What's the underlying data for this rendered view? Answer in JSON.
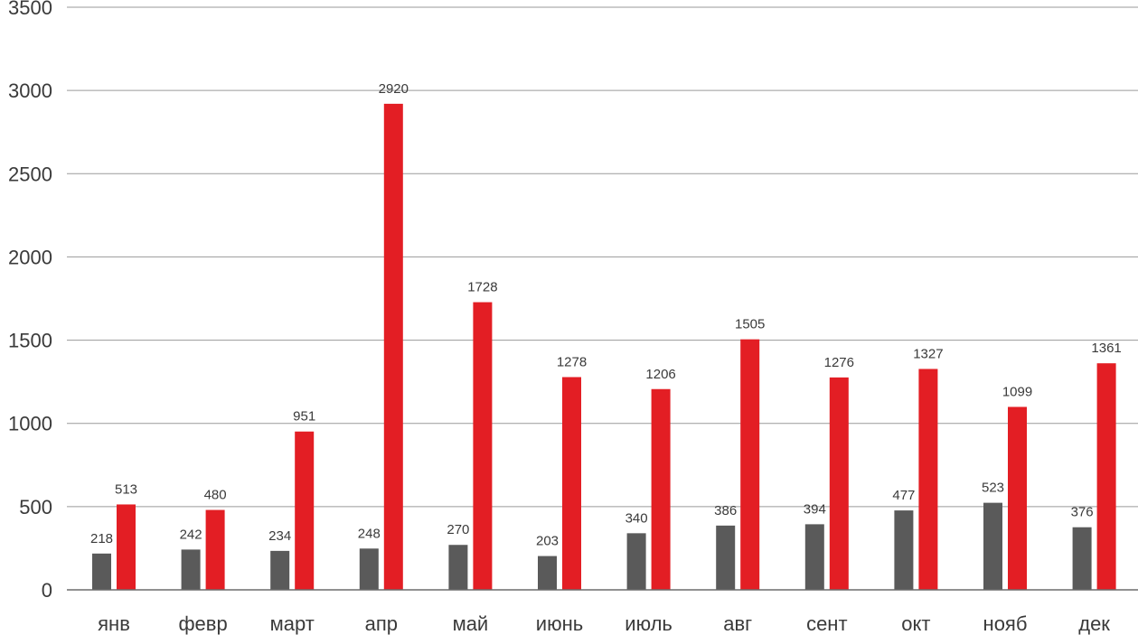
{
  "chart_data": {
    "type": "bar",
    "categories": [
      "янв",
      "февр",
      "март",
      "апр",
      "май",
      "июнь",
      "июль",
      "авг",
      "сент",
      "окт",
      "нояб",
      "дек"
    ],
    "series": [
      {
        "values": [
          218,
          242,
          234,
          248,
          270,
          203,
          340,
          386,
          394,
          477,
          523,
          376
        ],
        "color": "#5a5a5a"
      },
      {
        "values": [
          513,
          480,
          951,
          2920,
          1728,
          1278,
          1206,
          1505,
          1276,
          1327,
          1099,
          1361
        ],
        "color": "#e31e24"
      }
    ],
    "yticks": [
      "0",
      "500",
      "1000",
      "1500",
      "2000",
      "2500",
      "3000",
      "3500"
    ],
    "ylim": [
      0,
      3500
    ],
    "grid": true,
    "title": "",
    "xlabel": "",
    "ylabel": ""
  }
}
